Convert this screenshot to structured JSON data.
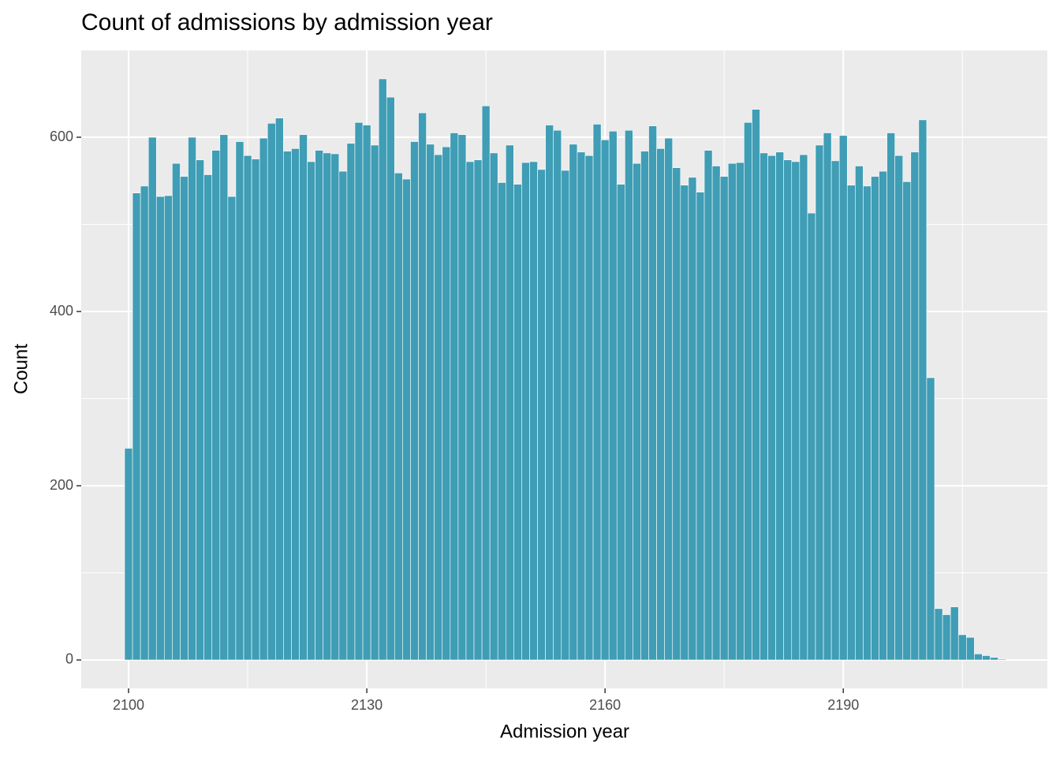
{
  "chart_data": {
    "type": "histogram",
    "title": "Count of admissions by admission year",
    "xlabel": "Admission year",
    "ylabel": "Count",
    "color": "#3f9db5",
    "bins": [
      2099.5,
      2100.5,
      2101.5,
      2102.5,
      2103.5,
      2104.5,
      2105.5,
      2106.5,
      2107.5,
      2108.5,
      2109.5,
      2110.5,
      2111.5,
      2112.5,
      2113.5,
      2114.5,
      2115.5,
      2116.5,
      2117.5,
      2118.5,
      2119.5,
      2120.5,
      2121.5,
      2122.5,
      2123.5,
      2124.5,
      2125.5,
      2126.5,
      2127.5,
      2128.5,
      2129.5,
      2130.5,
      2131.5,
      2132.5,
      2133.5,
      2134.5,
      2135.5,
      2136.5,
      2137.5,
      2138.5,
      2139.5,
      2140.5,
      2141.5,
      2142.5,
      2143.5,
      2144.5,
      2145.5,
      2146.5,
      2147.5,
      2148.5,
      2149.5,
      2150.5,
      2151.5,
      2152.5,
      2153.5,
      2154.5,
      2155.5,
      2156.5,
      2157.5,
      2158.5,
      2159.5,
      2160.5,
      2161.5,
      2162.5,
      2163.5,
      2164.5,
      2165.5,
      2166.5,
      2167.5,
      2168.5,
      2169.5,
      2170.5,
      2171.5,
      2172.5,
      2173.5,
      2174.5,
      2175.5,
      2176.5,
      2177.5,
      2178.5,
      2179.5,
      2180.5,
      2181.5,
      2182.5,
      2183.5,
      2184.5,
      2185.5,
      2186.5,
      2187.5,
      2188.5,
      2189.5,
      2190.5,
      2191.5,
      2192.5,
      2193.5,
      2194.5,
      2195.5,
      2196.5,
      2197.5,
      2198.5,
      2199.5,
      2200.5,
      2201.5,
      2202.5,
      2203.5,
      2204.5,
      2205.5,
      2206.5,
      2207.5,
      2208.5,
      2209.5,
      2210.5
    ],
    "values": [
      243,
      536,
      544,
      600,
      532,
      533,
      570,
      555,
      600,
      574,
      557,
      585,
      603,
      532,
      595,
      579,
      575,
      599,
      616,
      622,
      584,
      587,
      603,
      572,
      585,
      582,
      581,
      561,
      593,
      617,
      614,
      591,
      667,
      646,
      559,
      552,
      595,
      628,
      592,
      580,
      589,
      605,
      603,
      572,
      574,
      636,
      582,
      548,
      591,
      546,
      571,
      572,
      563,
      614,
      608,
      562,
      592,
      583,
      579,
      615,
      597,
      607,
      546,
      608,
      570,
      584,
      613,
      587,
      599,
      565,
      545,
      554,
      537,
      585,
      567,
      555,
      570,
      571,
      617,
      632,
      582,
      579,
      583,
      574,
      572,
      580,
      513,
      591,
      605,
      573,
      602,
      545,
      567,
      544,
      555,
      561,
      605,
      579,
      549,
      583,
      620,
      324,
      59,
      52,
      61,
      29,
      26,
      7,
      5,
      3,
      1
    ],
    "xlim": [
      2094.04,
      2215.7
    ],
    "ylim": [
      -32.6,
      700.5
    ],
    "xticks": [
      2100,
      2130,
      2160,
      2190
    ],
    "yticks": [
      0,
      200,
      400,
      600
    ],
    "grid": true
  }
}
